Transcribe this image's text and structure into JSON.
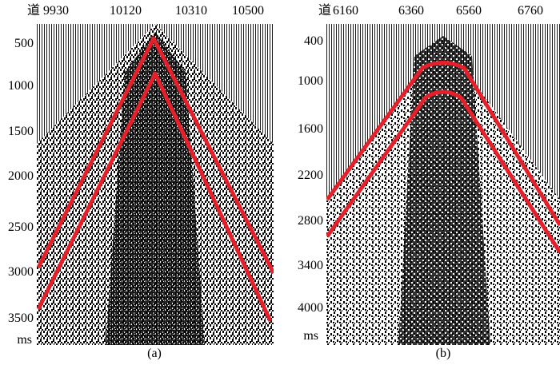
{
  "panels": [
    {
      "caption": "(a)",
      "trace_header": "道",
      "x_ticks": [
        "9930",
        "10120",
        "10310",
        "10500"
      ],
      "y_ticks": [
        "500",
        "1000",
        "1500",
        "2000",
        "2500",
        "3000",
        "3500"
      ],
      "y_unit": "ms",
      "curve_color": "#e5202a"
    },
    {
      "caption": "(b)",
      "trace_header": "道",
      "x_ticks": [
        "6160",
        "6360",
        "6560",
        "6760"
      ],
      "y_ticks": [
        "400",
        "1000",
        "1600",
        "2200",
        "2800",
        "3400",
        "4000"
      ],
      "y_unit": "ms",
      "curve_color": "#e5202a"
    }
  ]
}
